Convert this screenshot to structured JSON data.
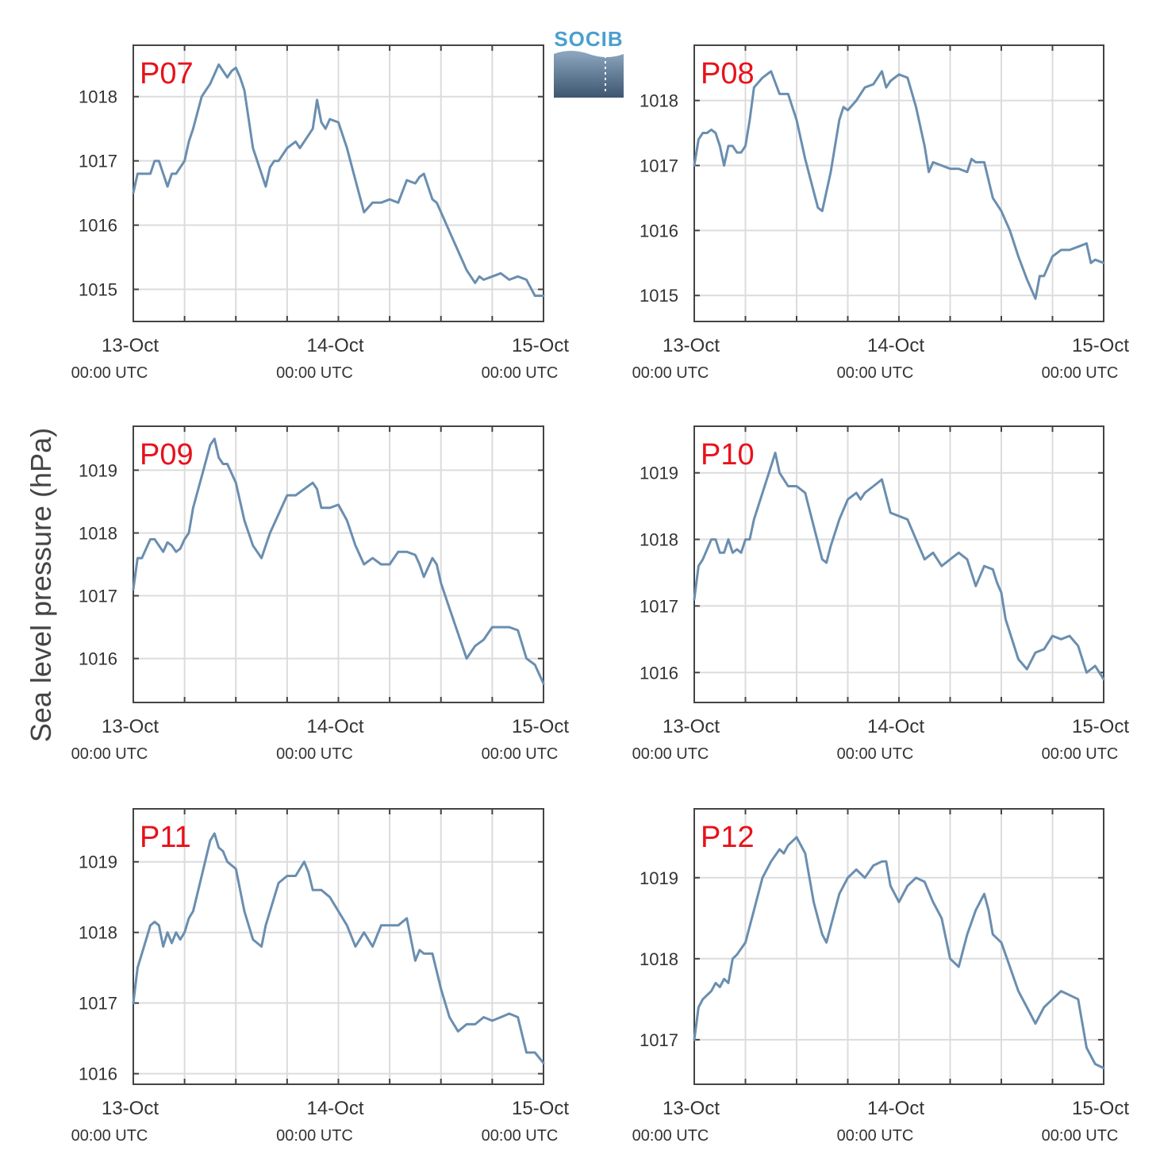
{
  "figure": {
    "ylabel": "Sea level pressure (hPa)",
    "logo_text": "SOCIB",
    "colors": {
      "line": "#6a8eb0",
      "panel_label": "#e8111b",
      "grid": "#dcdcdc",
      "axis": "#444444",
      "text": "#333333"
    }
  },
  "chart_data": [
    {
      "type": "line",
      "title": "P07",
      "xlim": [
        0,
        48
      ],
      "ylim": [
        1014.5,
        1018.8
      ],
      "yticks": [
        1015,
        1016,
        1017,
        1018
      ],
      "xticks_major": [
        {
          "at": 0,
          "date": "13-Oct",
          "time": "00:00 UTC"
        },
        {
          "at": 24,
          "date": "14-Oct",
          "time": "00:00 UTC"
        },
        {
          "at": 48,
          "date": "15-Oct",
          "time": "00:00 UTC"
        }
      ],
      "xticks_minor": [
        6,
        12,
        18,
        30,
        36,
        42
      ],
      "series": [
        {
          "x": [
            0,
            0.5,
            1,
            2,
            2.5,
            3,
            3.5,
            4,
            4.5,
            5,
            6,
            6.5,
            7,
            8,
            9,
            10,
            11,
            11.5,
            12,
            12.5,
            13,
            14,
            15,
            15.5,
            16,
            16.5,
            17,
            18,
            19,
            19.5,
            20,
            20.5,
            21,
            21.5,
            22,
            22.5,
            23,
            24,
            25,
            26,
            27,
            28,
            29,
            30,
            31,
            32,
            33,
            33.5,
            34,
            35,
            35.5,
            36,
            37,
            38,
            39,
            40,
            40.5,
            41,
            42,
            43,
            44,
            45,
            46,
            47,
            48
          ],
          "y": [
            1016.5,
            1016.8,
            1016.8,
            1016.8,
            1017.0,
            1017.0,
            1016.8,
            1016.6,
            1016.8,
            1016.8,
            1017.0,
            1017.3,
            1017.5,
            1018.0,
            1018.2,
            1018.5,
            1018.3,
            1018.4,
            1018.45,
            1018.3,
            1018.1,
            1017.2,
            1016.8,
            1016.6,
            1016.9,
            1017.0,
            1017.0,
            1017.2,
            1017.3,
            1017.2,
            1017.3,
            1017.4,
            1017.5,
            1017.95,
            1017.6,
            1017.5,
            1017.65,
            1017.6,
            1017.2,
            1016.7,
            1016.2,
            1016.35,
            1016.35,
            1016.4,
            1016.35,
            1016.7,
            1016.65,
            1016.75,
            1016.8,
            1016.4,
            1016.35,
            1016.2,
            1015.9,
            1015.6,
            1015.3,
            1015.1,
            1015.2,
            1015.15,
            1015.2,
            1015.25,
            1015.15,
            1015.2,
            1015.15,
            1014.9,
            1014.9
          ]
        }
      ]
    },
    {
      "type": "line",
      "title": "P08",
      "xlim": [
        0,
        48
      ],
      "ylim": [
        1014.6,
        1018.85
      ],
      "yticks": [
        1015,
        1016,
        1017,
        1018
      ],
      "xticks_major": [
        {
          "at": 0,
          "date": "13-Oct",
          "time": "00:00 UTC"
        },
        {
          "at": 24,
          "date": "14-Oct",
          "time": "00:00 UTC"
        },
        {
          "at": 48,
          "date": "15-Oct",
          "time": "00:00 UTC"
        }
      ],
      "xticks_minor": [
        6,
        12,
        18,
        30,
        36,
        42
      ],
      "series": [
        {
          "x": [
            0,
            0.5,
            1,
            1.5,
            2,
            2.5,
            3,
            3.5,
            4,
            4.5,
            5,
            5.5,
            6,
            6.5,
            7,
            8,
            9,
            10,
            10.5,
            11,
            12,
            13,
            14,
            14.5,
            15,
            16,
            17,
            17.5,
            18,
            19,
            20,
            21,
            22,
            22.5,
            23,
            24,
            25,
            26,
            27,
            27.5,
            28,
            29,
            30,
            31,
            32,
            32.5,
            33,
            34,
            35,
            36,
            37,
            38,
            39,
            40,
            40.5,
            41,
            42,
            43,
            44,
            45,
            46,
            46.5,
            47,
            48
          ],
          "y": [
            1017.0,
            1017.4,
            1017.5,
            1017.5,
            1017.55,
            1017.5,
            1017.3,
            1017.0,
            1017.3,
            1017.3,
            1017.2,
            1017.2,
            1017.3,
            1017.7,
            1018.2,
            1018.35,
            1018.45,
            1018.1,
            1018.1,
            1018.1,
            1017.7,
            1017.1,
            1016.6,
            1016.35,
            1016.3,
            1016.9,
            1017.7,
            1017.9,
            1017.85,
            1018.0,
            1018.2,
            1018.25,
            1018.45,
            1018.2,
            1018.3,
            1018.4,
            1018.35,
            1017.9,
            1017.3,
            1016.9,
            1017.05,
            1017.0,
            1016.95,
            1016.95,
            1016.9,
            1017.1,
            1017.05,
            1017.05,
            1016.5,
            1016.3,
            1016.0,
            1015.6,
            1015.25,
            1014.95,
            1015.3,
            1015.3,
            1015.6,
            1015.7,
            1015.7,
            1015.75,
            1015.8,
            1015.5,
            1015.55,
            1015.5
          ]
        }
      ]
    },
    {
      "type": "line",
      "title": "P09",
      "xlim": [
        0,
        48
      ],
      "ylim": [
        1015.3,
        1019.7
      ],
      "yticks": [
        1016,
        1017,
        1018,
        1019
      ],
      "xticks_major": [
        {
          "at": 0,
          "date": "13-Oct",
          "time": "00:00 UTC"
        },
        {
          "at": 24,
          "date": "14-Oct",
          "time": "00:00 UTC"
        },
        {
          "at": 48,
          "date": "15-Oct",
          "time": "00:00 UTC"
        }
      ],
      "xticks_minor": [
        6,
        12,
        18,
        30,
        36,
        42
      ],
      "series": [
        {
          "x": [
            0,
            0.5,
            1,
            2,
            2.5,
            3,
            3.5,
            4,
            4.5,
            5,
            5.5,
            6,
            6.5,
            7,
            8,
            9,
            9.5,
            10,
            10.5,
            11,
            12,
            13,
            14,
            15,
            15.5,
            16,
            17,
            18,
            19,
            20,
            21,
            21.5,
            22,
            23,
            24,
            25,
            26,
            27,
            28,
            29,
            30,
            31,
            32,
            33,
            33.5,
            34,
            35,
            35.5,
            36,
            37,
            38,
            39,
            40,
            41,
            42,
            43,
            44,
            45,
            46,
            47,
            48
          ],
          "y": [
            1017.1,
            1017.6,
            1017.6,
            1017.9,
            1017.9,
            1017.8,
            1017.7,
            1017.85,
            1017.8,
            1017.7,
            1017.75,
            1017.9,
            1018.0,
            1018.4,
            1018.9,
            1019.4,
            1019.5,
            1019.2,
            1019.1,
            1019.1,
            1018.8,
            1018.2,
            1017.8,
            1017.6,
            1017.8,
            1018.0,
            1018.3,
            1018.6,
            1018.6,
            1018.7,
            1018.8,
            1018.7,
            1018.4,
            1018.4,
            1018.45,
            1018.2,
            1017.8,
            1017.5,
            1017.6,
            1017.5,
            1017.5,
            1017.7,
            1017.7,
            1017.65,
            1017.5,
            1017.3,
            1017.6,
            1017.5,
            1017.2,
            1016.8,
            1016.4,
            1016.0,
            1016.2,
            1016.3,
            1016.5,
            1016.5,
            1016.5,
            1016.45,
            1016.0,
            1015.9,
            1015.6
          ]
        }
      ]
    },
    {
      "type": "line",
      "title": "P10",
      "xlim": [
        0,
        48
      ],
      "ylim": [
        1015.55,
        1019.7
      ],
      "yticks": [
        1016,
        1017,
        1018,
        1019
      ],
      "xticks_major": [
        {
          "at": 0,
          "date": "13-Oct",
          "time": "00:00 UTC"
        },
        {
          "at": 24,
          "date": "14-Oct",
          "time": "00:00 UTC"
        },
        {
          "at": 48,
          "date": "15-Oct",
          "time": "00:00 UTC"
        }
      ],
      "xticks_minor": [
        6,
        12,
        18,
        30,
        36,
        42
      ],
      "series": [
        {
          "x": [
            0,
            0.5,
            1,
            2,
            2.5,
            3,
            3.5,
            4,
            4.5,
            5,
            5.5,
            6,
            6.5,
            7,
            8,
            9,
            9.5,
            10,
            11,
            12,
            13,
            14,
            15,
            15.5,
            16,
            17,
            18,
            19,
            19.5,
            20,
            21,
            22,
            23,
            24,
            25,
            26,
            27,
            28,
            29,
            30,
            31,
            32,
            33,
            34,
            35,
            35.5,
            36,
            36.5,
            37,
            38,
            39,
            40,
            41,
            42,
            43,
            44,
            45,
            46,
            47,
            48
          ],
          "y": [
            1017.1,
            1017.6,
            1017.7,
            1018.0,
            1018.0,
            1017.8,
            1017.8,
            1018.0,
            1017.8,
            1017.85,
            1017.8,
            1018.0,
            1018.0,
            1018.3,
            1018.7,
            1019.1,
            1019.3,
            1019.0,
            1018.8,
            1018.8,
            1018.7,
            1018.2,
            1017.7,
            1017.65,
            1017.9,
            1018.3,
            1018.6,
            1018.7,
            1018.6,
            1018.7,
            1018.8,
            1018.9,
            1018.4,
            1018.35,
            1018.3,
            1018.0,
            1017.7,
            1017.8,
            1017.6,
            1017.7,
            1017.8,
            1017.7,
            1017.3,
            1017.6,
            1017.55,
            1017.35,
            1017.2,
            1016.8,
            1016.6,
            1016.2,
            1016.05,
            1016.3,
            1016.35,
            1016.55,
            1016.5,
            1016.55,
            1016.4,
            1016.0,
            1016.1,
            1015.9
          ]
        }
      ]
    },
    {
      "type": "line",
      "title": "P11",
      "xlim": [
        0,
        48
      ],
      "ylim": [
        1015.85,
        1019.75
      ],
      "yticks": [
        1016,
        1017,
        1018,
        1019
      ],
      "xticks_major": [
        {
          "at": 0,
          "date": "13-Oct",
          "time": "00:00 UTC"
        },
        {
          "at": 24,
          "date": "14-Oct",
          "time": "00:00 UTC"
        },
        {
          "at": 48,
          "date": "15-Oct",
          "time": "00:00 UTC"
        }
      ],
      "xticks_minor": [
        6,
        12,
        18,
        30,
        36,
        42
      ],
      "series": [
        {
          "x": [
            0,
            0.5,
            1,
            1.5,
            2,
            2.5,
            3,
            3.5,
            4,
            4.5,
            5,
            5.5,
            6,
            6.5,
            7,
            8,
            9,
            9.5,
            10,
            10.5,
            11,
            12,
            13,
            14,
            15,
            15.5,
            16,
            17,
            18,
            19,
            20,
            20.5,
            21,
            22,
            23,
            24,
            25,
            26,
            27,
            28,
            29,
            30,
            31,
            32,
            33,
            33.5,
            34,
            35,
            36,
            37,
            38,
            39,
            40,
            41,
            42,
            43,
            44,
            45,
            46,
            47,
            48
          ],
          "y": [
            1017.0,
            1017.5,
            1017.7,
            1017.9,
            1018.1,
            1018.15,
            1018.1,
            1017.8,
            1018.0,
            1017.85,
            1018.0,
            1017.9,
            1018.0,
            1018.2,
            1018.3,
            1018.8,
            1019.3,
            1019.4,
            1019.2,
            1019.15,
            1019.0,
            1018.9,
            1018.3,
            1017.9,
            1017.8,
            1018.1,
            1018.3,
            1018.7,
            1018.8,
            1018.8,
            1019.0,
            1018.85,
            1018.6,
            1018.6,
            1018.5,
            1018.3,
            1018.1,
            1017.8,
            1018.0,
            1017.8,
            1018.1,
            1018.1,
            1018.1,
            1018.2,
            1017.6,
            1017.75,
            1017.7,
            1017.7,
            1017.2,
            1016.8,
            1016.6,
            1016.7,
            1016.7,
            1016.8,
            1016.75,
            1016.8,
            1016.85,
            1016.8,
            1016.3,
            1016.3,
            1016.15
          ]
        }
      ]
    },
    {
      "type": "line",
      "title": "P12",
      "xlim": [
        0,
        48
      ],
      "ylim": [
        1016.45,
        1019.85
      ],
      "yticks": [
        1017,
        1018,
        1019
      ],
      "xticks_major": [
        {
          "at": 0,
          "date": "13-Oct",
          "time": "00:00 UTC"
        },
        {
          "at": 24,
          "date": "14-Oct",
          "time": "00:00 UTC"
        },
        {
          "at": 48,
          "date": "15-Oct",
          "time": "00:00 UTC"
        }
      ],
      "xticks_minor": [
        6,
        12,
        18,
        30,
        36,
        42
      ],
      "series": [
        {
          "x": [
            0,
            0.5,
            1,
            2,
            2.5,
            3,
            3.5,
            4,
            4.5,
            5,
            6,
            7,
            8,
            9,
            10,
            10.5,
            11,
            12,
            13,
            14,
            15,
            15.5,
            16,
            17,
            18,
            19,
            20,
            21,
            22,
            22.5,
            23,
            24,
            25,
            26,
            27,
            28,
            29,
            30,
            31,
            32,
            33,
            34,
            34.5,
            35,
            36,
            37,
            38,
            39,
            40,
            41,
            42,
            43,
            44,
            45,
            46,
            47,
            48
          ],
          "y": [
            1017.0,
            1017.4,
            1017.5,
            1017.6,
            1017.7,
            1017.65,
            1017.75,
            1017.7,
            1018.0,
            1018.05,
            1018.2,
            1018.6,
            1019.0,
            1019.2,
            1019.35,
            1019.3,
            1019.4,
            1019.5,
            1019.3,
            1018.7,
            1018.3,
            1018.2,
            1018.4,
            1018.8,
            1019.0,
            1019.1,
            1019.0,
            1019.15,
            1019.2,
            1019.2,
            1018.9,
            1018.7,
            1018.9,
            1019.0,
            1018.95,
            1018.7,
            1018.5,
            1018.0,
            1017.9,
            1018.3,
            1018.6,
            1018.8,
            1018.6,
            1018.3,
            1018.2,
            1017.9,
            1017.6,
            1017.4,
            1017.2,
            1017.4,
            1017.5,
            1017.6,
            1017.55,
            1017.5,
            1016.9,
            1016.7,
            1016.65
          ]
        }
      ]
    }
  ]
}
